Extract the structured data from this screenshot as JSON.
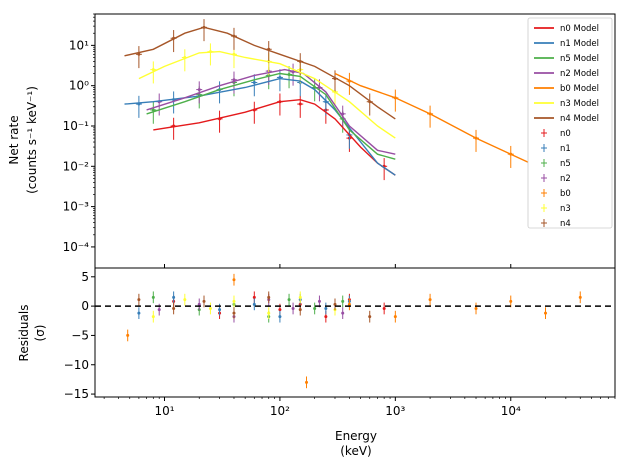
{
  "chart_data": [
    {
      "type": "line",
      "panel": "top",
      "xscale": "log",
      "yscale": "log",
      "xlim": [
        2.5,
        80000
      ],
      "ylim": [
        3e-05,
        60
      ],
      "ylabel_line1": "Net rate",
      "ylabel_line2": "(counts s⁻¹ keV⁻¹)",
      "yticks": [
        {
          "value": 0.0001,
          "label": "10⁻⁴"
        },
        {
          "value": 0.001,
          "label": "10⁻³"
        },
        {
          "value": 0.01,
          "label": "10⁻²"
        },
        {
          "value": 0.1,
          "label": "10⁻¹"
        },
        {
          "value": 1,
          "label": "10⁰"
        },
        {
          "value": 10,
          "label": "10¹"
        }
      ],
      "legend_position": "top-right",
      "grid": false,
      "series": [
        {
          "name": "n0 Model",
          "color": "#e41a1c",
          "points": [
            [
              8,
              0.08
            ],
            [
              20,
              0.12
            ],
            [
              50,
              0.22
            ],
            [
              100,
              0.4
            ],
            [
              150,
              0.45
            ],
            [
              200,
              0.35
            ],
            [
              300,
              0.15
            ],
            [
              500,
              0.03
            ],
            [
              700,
              0.012
            ],
            [
              1000,
              0.006
            ]
          ]
        },
        {
          "name": "n1 Model",
          "color": "#377eb8",
          "points": [
            [
              4.5,
              0.35
            ],
            [
              8,
              0.4
            ],
            [
              20,
              0.55
            ],
            [
              50,
              0.9
            ],
            [
              100,
              1.5
            ],
            [
              150,
              1.3
            ],
            [
              200,
              0.8
            ],
            [
              300,
              0.25
            ],
            [
              500,
              0.04
            ],
            [
              700,
              0.012
            ],
            [
              1000,
              0.006
            ]
          ]
        },
        {
          "name": "n5 Model",
          "color": "#4daf4a",
          "points": [
            [
              7,
              0.2
            ],
            [
              15,
              0.4
            ],
            [
              30,
              0.8
            ],
            [
              60,
              1.4
            ],
            [
              100,
              2.0
            ],
            [
              150,
              1.7
            ],
            [
              250,
              0.6
            ],
            [
              400,
              0.08
            ],
            [
              700,
              0.02
            ],
            [
              1000,
              0.015
            ]
          ]
        },
        {
          "name": "n2 Model",
          "color": "#984ea3",
          "points": [
            [
              7,
              0.25
            ],
            [
              15,
              0.5
            ],
            [
              30,
              1.0
            ],
            [
              60,
              1.8
            ],
            [
              110,
              2.5
            ],
            [
              160,
              2.0
            ],
            [
              250,
              0.7
            ],
            [
              400,
              0.1
            ],
            [
              700,
              0.025
            ],
            [
              1000,
              0.02
            ]
          ]
        },
        {
          "name": "b0 Model",
          "color": "#ff7f00",
          "points": [
            [
              300,
              2.0
            ],
            [
              500,
              1.0
            ],
            [
              1000,
              0.5
            ],
            [
              2000,
              0.2
            ],
            [
              5000,
              0.05
            ],
            [
              10000,
              0.02
            ],
            [
              20000,
              0.008
            ],
            [
              40000,
              0.003
            ]
          ]
        },
        {
          "name": "n3 Model",
          "color": "#ffff33",
          "points": [
            [
              6,
              1.5
            ],
            [
              10,
              3.0
            ],
            [
              20,
              6.5
            ],
            [
              30,
              7.0
            ],
            [
              50,
              5.0
            ],
            [
              100,
              3.5
            ],
            [
              200,
              1.5
            ],
            [
              400,
              0.4
            ],
            [
              700,
              0.1
            ],
            [
              1000,
              0.05
            ]
          ]
        },
        {
          "name": "n4 Model",
          "color": "#a65628",
          "points": [
            [
              4.5,
              5.5
            ],
            [
              8,
              8
            ],
            [
              15,
              20
            ],
            [
              22,
              28
            ],
            [
              35,
              20
            ],
            [
              60,
              10
            ],
            [
              100,
              6
            ],
            [
              200,
              3
            ],
            [
              400,
              1
            ],
            [
              700,
              0.3
            ],
            [
              1000,
              0.15
            ]
          ]
        }
      ],
      "data_series": [
        {
          "name": "n0",
          "color": "#e41a1c",
          "points": [
            [
              12,
              0.1
            ],
            [
              30,
              0.15
            ],
            [
              60,
              0.25
            ],
            [
              100,
              0.4
            ],
            [
              150,
              0.35
            ],
            [
              250,
              0.25
            ],
            [
              400,
              0.05
            ],
            [
              800,
              0.01
            ]
          ]
        },
        {
          "name": "n1",
          "color": "#377eb8",
          "points": [
            [
              6,
              0.35
            ],
            [
              12,
              0.45
            ],
            [
              30,
              0.8
            ],
            [
              60,
              1.2
            ],
            [
              100,
              1.6
            ],
            [
              150,
              1.2
            ],
            [
              250,
              0.4
            ],
            [
              400,
              0.06
            ]
          ]
        },
        {
          "name": "n5",
          "color": "#4daf4a",
          "points": [
            [
              8,
              0.25
            ],
            [
              20,
              0.6
            ],
            [
              40,
              1.2
            ],
            [
              80,
              1.8
            ],
            [
              120,
              1.9
            ],
            [
              200,
              0.9
            ],
            [
              350,
              0.15
            ]
          ]
        },
        {
          "name": "n2",
          "color": "#984ea3",
          "points": [
            [
              9,
              0.4
            ],
            [
              20,
              0.8
            ],
            [
              40,
              1.4
            ],
            [
              80,
              2.3
            ],
            [
              130,
              2.2
            ],
            [
              220,
              0.9
            ],
            [
              350,
              0.2
            ]
          ]
        },
        {
          "name": "b0",
          "color": "#ff7f00",
          "points": [
            [
              400,
              1.3
            ],
            [
              1000,
              0.5
            ],
            [
              2000,
              0.2
            ],
            [
              5000,
              0.05
            ],
            [
              10000,
              0.02
            ],
            [
              20000,
              0.008
            ],
            [
              40000,
              0.0025
            ]
          ]
        },
        {
          "name": "n3",
          "color": "#ffff33",
          "points": [
            [
              8,
              2.5
            ],
            [
              15,
              5
            ],
            [
              25,
              7
            ],
            [
              40,
              6
            ],
            [
              80,
              4
            ],
            [
              150,
              2.5
            ],
            [
              300,
              0.7
            ]
          ]
        },
        {
          "name": "n4",
          "color": "#a65628",
          "points": [
            [
              6,
              6
            ],
            [
              12,
              15
            ],
            [
              22,
              28
            ],
            [
              40,
              17
            ],
            [
              80,
              8
            ],
            [
              150,
              4
            ],
            [
              300,
              1.5
            ],
            [
              600,
              0.4
            ]
          ]
        }
      ]
    },
    {
      "type": "scatter",
      "panel": "bottom",
      "xscale": "log",
      "xlim": [
        2.5,
        80000
      ],
      "ylim": [
        -15.5,
        6.5
      ],
      "xlabel_line1": "Energy",
      "xlabel_line2": "(keV)",
      "ylabel_line1": "Residuals",
      "ylabel_line2": "(σ)",
      "yticks": [
        {
          "value": 5,
          "label": "5"
        },
        {
          "value": 0,
          "label": "0"
        },
        {
          "value": -5,
          "label": "−5"
        },
        {
          "value": -10,
          "label": "−10"
        },
        {
          "value": -15,
          "label": "−15"
        }
      ],
      "xticks": [
        {
          "value": 10,
          "label": "10¹"
        },
        {
          "value": 100,
          "label": "10²"
        },
        {
          "value": 1000,
          "label": "10³"
        },
        {
          "value": 10000,
          "label": "10⁴"
        }
      ],
      "zero_line": 0,
      "outliers": [
        [
          4.8,
          -5.0
        ],
        [
          170,
          -13.0
        ],
        [
          40,
          4.5
        ]
      ]
    }
  ]
}
